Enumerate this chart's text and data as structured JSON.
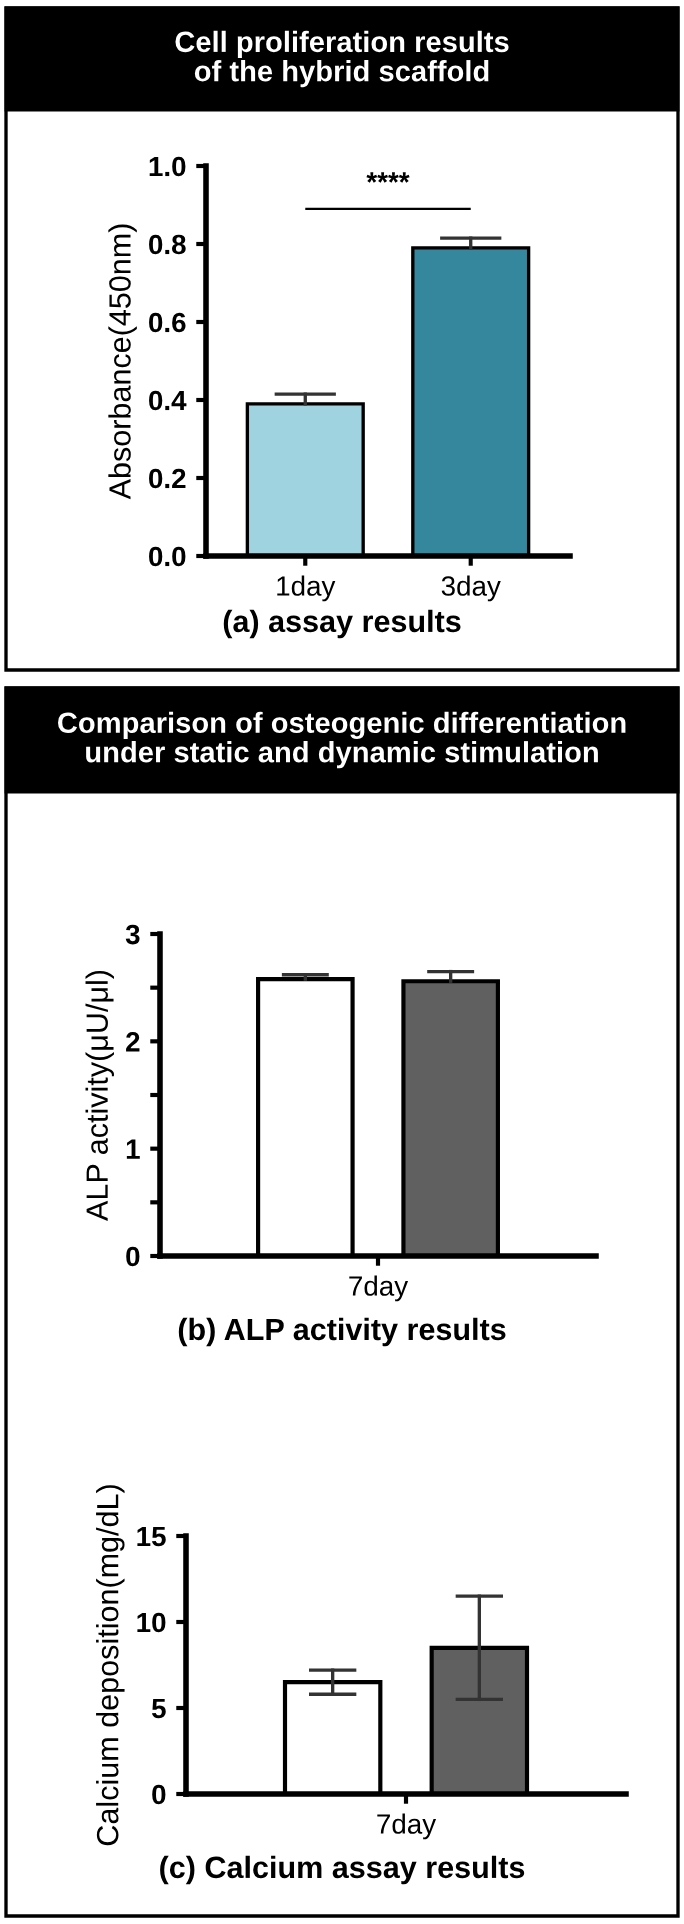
{
  "chart_data": [
    {
      "type": "bar",
      "title": "Cell proliferation results\nof the hybrid scaffold",
      "ylabel": "Absorbance(450nm)",
      "categories": [
        "1day",
        "3day"
      ],
      "values": [
        0.39,
        0.79
      ],
      "colors": [
        "#9fd3e0",
        "#35879e"
      ],
      "errors": [
        [
          0.39,
          0.415
        ],
        [
          0.79,
          0.815
        ]
      ],
      "ylim": [
        0,
        1.0
      ],
      "yticks": [
        {
          "value": 0,
          "label": "0.0"
        },
        0.2,
        0.4,
        0.6,
        0.8,
        {
          "value": 1,
          "label": "1.0"
        }
      ],
      "grid": false,
      "annotations": [
        "****",
        "(a) assay results"
      ]
    },
    {
      "type": "bar",
      "title": "Comparison of osteogenic differentiation\nunder static and dynamic stimulation",
      "ylabel": "ALP activity(μU/μl)",
      "categories": [
        "7day"
      ],
      "series": [
        {
          "color": "#ffffff",
          "values": [
            2.58
          ],
          "errors": [
            [
              2.58,
              2.62
            ]
          ]
        },
        {
          "color": "#606060",
          "values": [
            2.56
          ],
          "errors": [
            [
              2.56,
              2.65
            ]
          ]
        }
      ],
      "ylim": [
        0,
        3
      ],
      "yticks": [
        0,
        {
          "value": 0.5,
          "label": null
        },
        1,
        {
          "value": 1.5,
          "label": null
        },
        2,
        {
          "value": 2.5,
          "label": null
        },
        3
      ],
      "grid": false,
      "annotations": [
        "(b) ALP activity results"
      ]
    },
    {
      "type": "bar",
      "ylabel": "Calcium deposition(mg/dL)",
      "categories": [
        "7day"
      ],
      "series": [
        {
          "color": "#ffffff",
          "values": [
            6.5
          ],
          "errors": [
            [
              5.8,
              7.2
            ]
          ]
        },
        {
          "color": "#606060",
          "values": [
            8.5
          ],
          "errors": [
            [
              5.5,
              11.5
            ]
          ]
        }
      ],
      "ylim": [
        0,
        15
      ],
      "yticks": [
        0,
        5,
        10,
        15
      ],
      "grid": false,
      "annotations": [
        "(c) Calcium assay results"
      ]
    }
  ]
}
